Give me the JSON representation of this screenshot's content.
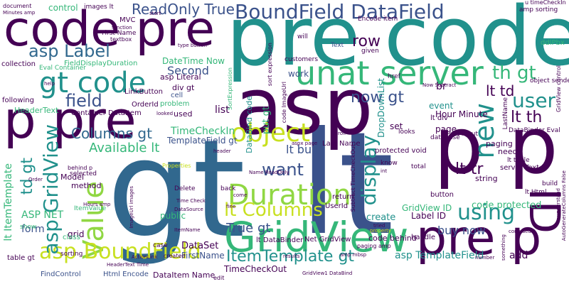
{
  "palette": {
    "background": "#ffffff",
    "dark_purple": "#440154",
    "indigo": "#3b528b",
    "slate_blue": "#31688e",
    "teal": "#21918c",
    "green": "#35b779",
    "light_green": "#5ec962",
    "lime": "#90d743",
    "yellow": "#c8e020"
  },
  "words": [
    {
      "text": "gt"
    },
    {
      "text": "lt"
    },
    {
      "text": "asp"
    },
    {
      "text": "pre"
    },
    {
      "text": "code"
    },
    {
      "text": "code pre"
    },
    {
      "text": "p p"
    },
    {
      "text": "p pre"
    },
    {
      "text": "pre p"
    },
    {
      "text": "GridView"
    },
    {
      "text": "unat server"
    },
    {
      "text": "ID"
    },
    {
      "text": "BoundField DataField"
    },
    {
      "text": "gt code"
    },
    {
      "text": "Value"
    },
    {
      "text": "Duration"
    },
    {
      "text": "object"
    },
    {
      "text": "lt Columns"
    },
    {
      "text": "asp BoundField"
    },
    {
      "text": "asp GridView"
    },
    {
      "text": "new"
    },
    {
      "text": "user"
    },
    {
      "text": "using"
    },
    {
      "text": "display"
    },
    {
      "text": "want"
    },
    {
      "text": "asp Label"
    },
    {
      "text": "field"
    },
    {
      "text": "ReadOnly True"
    },
    {
      "text": "Columns gt"
    },
    {
      "text": "th gt"
    },
    {
      "text": "lt th"
    },
    {
      "text": "lt td"
    },
    {
      "text": "lt tr"
    },
    {
      "text": "now gt"
    },
    {
      "text": "ItemTemplate gt"
    },
    {
      "text": "True gt"
    },
    {
      "text": "row"
    },
    {
      "text": "td gt"
    },
    {
      "text": "Second"
    },
    {
      "text": "Available lt"
    },
    {
      "text": "lt buy"
    },
    {
      "text": "buy now"
    },
    {
      "text": "TimeCheckIn"
    },
    {
      "text": "GridView ID"
    },
    {
      "text": "asp TemplateField"
    },
    {
      "text": "code protected"
    },
    {
      "text": "TemplateField gt"
    },
    {
      "text": "ASP NET"
    },
    {
      "text": "form"
    },
    {
      "text": "lt ItemTemplate"
    },
    {
      "text": "Hour Minute"
    },
    {
      "text": "Label ID"
    },
    {
      "text": "DataSet"
    },
    {
      "text": "TimeCheckOut"
    },
    {
      "text": "FirstName"
    },
    {
      "text": "DataItem Name"
    },
    {
      "text": "Html Encode"
    },
    {
      "text": "FindControl"
    },
    {
      "text": "HeaderText"
    },
    {
      "text": "Container DataItem"
    },
    {
      "text": "LinkButton"
    },
    {
      "text": "OrderId"
    },
    {
      "text": "DateTime Now"
    },
    {
      "text": "asp Literal"
    },
    {
      "text": "div gt"
    },
    {
      "text": "cell"
    },
    {
      "text": "problem"
    },
    {
      "text": "used"
    },
    {
      "text": "list"
    },
    {
      "text": "put gt"
    },
    {
      "text": "work"
    },
    {
      "text": "control"
    },
    {
      "text": "DropDownList"
    },
    {
      "text": "event"
    },
    {
      "text": "page"
    },
    {
      "text": "set"
    },
    {
      "text": "lt div"
    },
    {
      "text": "br"
    },
    {
      "text": "paging"
    },
    {
      "text": "need"
    },
    {
      "text": "string"
    },
    {
      "text": "server Text"
    },
    {
      "text": "lt table"
    },
    {
      "text": "DataBinder Eval"
    },
    {
      "text": "protected void"
    },
    {
      "text": "Last Name"
    },
    {
      "text": "return"
    },
    {
      "text": "UserId"
    },
    {
      "text": "create"
    },
    {
      "text": "button"
    },
    {
      "text": "code behind"
    },
    {
      "text": "handle"
    },
    {
      "text": "add"
    },
    {
      "text": "Net GridView"
    },
    {
      "text": "lt DataBinder"
    },
    {
      "text": "DataBind code"
    },
    {
      "text": "Eval Container"
    },
    {
      "text": "FieldDisplayDuration"
    },
    {
      "text": "collection"
    },
    {
      "text": "following"
    },
    {
      "text": "First Name"
    },
    {
      "text": "MVC"
    },
    {
      "text": "Encode item"
    },
    {
      "text": "amp sorting"
    },
    {
      "text": "images lt"
    },
    {
      "text": "u timeCheckIn"
    },
    {
      "text": "object sender"
    },
    {
      "text": "ddlPbx"
    },
    {
      "text": "Text"
    },
    {
      "text": "will"
    },
    {
      "text": "href"
    },
    {
      "text": "given"
    },
    {
      "text": "customers"
    },
    {
      "text": "LastName"
    },
    {
      "text": "Model"
    },
    {
      "text": "method"
    },
    {
      "text": "grid"
    },
    {
      "text": "sorting"
    },
    {
      "text": "public"
    },
    {
      "text": "ItemValue"
    },
    {
      "text": "class"
    },
    {
      "text": "show"
    },
    {
      "text": "table gt"
    },
    {
      "text": "selected"
    },
    {
      "text": "Delete"
    },
    {
      "text": "case"
    },
    {
      "text": "created"
    },
    {
      "text": "back"
    },
    {
      "text": "Properties"
    },
    {
      "text": "edit"
    },
    {
      "text": "know"
    },
    {
      "text": "total"
    },
    {
      "text": "lt input"
    },
    {
      "text": "lt Html"
    },
    {
      "text": "build"
    },
    {
      "text": "looks"
    },
    {
      "text": "database"
    },
    {
      "text": "Subtract TimeCheckOut"
    },
    {
      "text": "sort expression"
    },
    {
      "text": "SortExpression"
    },
    {
      "text": "Minutes amp"
    },
    {
      "text": "document"
    },
    {
      "text": "type button"
    },
    {
      "text": "textbox"
    },
    {
      "text": "function"
    },
    {
      "text": "start"
    },
    {
      "text": "help"
    },
    {
      "text": "Order"
    },
    {
      "text": "Hours amp"
    },
    {
      "text": "ActionLink"
    },
    {
      "text": "ItemName"
    },
    {
      "text": "GridView1 DataBind"
    },
    {
      "text": "amp mbsp"
    },
    {
      "text": "paging amp"
    },
    {
      "text": "code ImageUrl"
    },
    {
      "text": "aspx page"
    },
    {
      "text": "Now Subtract"
    },
    {
      "text": "GridView control"
    },
    {
      "text": "AutoGenerateColumns False"
    },
    {
      "text": "understand"
    },
    {
      "text": "confused"
    },
    {
      "text": "something"
    },
    {
      "text": "number"
    },
    {
      "text": "HeaderText Time"
    },
    {
      "text": "DataSource"
    },
    {
      "text": "Time Check"
    },
    {
      "text": "Name ReadOnly"
    },
    {
      "text": "results"
    },
    {
      "text": "come"
    },
    {
      "text": "tried"
    },
    {
      "text": "property"
    },
    {
      "text": "fine"
    },
    {
      "text": "ImageUrl images"
    },
    {
      "text": "int"
    },
    {
      "text": "roll"
    },
    {
      "text": "header"
    },
    {
      "text": "looked"
    },
    {
      "text": "behind p"
    }
  ]
}
